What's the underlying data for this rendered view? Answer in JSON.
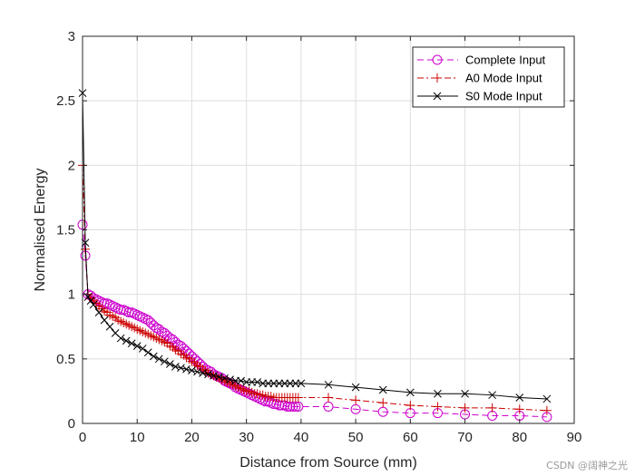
{
  "chart_data": {
    "type": "line",
    "title": "",
    "xlabel": "Distance from Source (mm)",
    "ylabel": "Normalised Energy",
    "xlim": [
      0,
      90
    ],
    "ylim": [
      0,
      3
    ],
    "xticks": [
      0,
      10,
      20,
      30,
      40,
      50,
      60,
      70,
      80,
      90
    ],
    "yticks": [
      0,
      0.5,
      1,
      1.5,
      2,
      2.5,
      3
    ],
    "xtick_labels": [
      "0",
      "10",
      "20",
      "30",
      "40",
      "50",
      "60",
      "70",
      "80",
      "90"
    ],
    "ytick_labels": [
      "0",
      "0.5",
      "1",
      "1.5",
      "2",
      "2.5",
      "3"
    ],
    "grid": true,
    "legend_position": "top-right",
    "series": [
      {
        "name": "Complete Input",
        "color": "#cc00cc",
        "line": "dashed",
        "marker": "circle",
        "x": [
          0,
          0.5,
          1,
          1.5,
          2,
          2.5,
          3,
          3.5,
          4,
          4.5,
          5,
          5.5,
          6,
          6.5,
          7,
          7.5,
          8,
          8.5,
          9,
          9.5,
          10,
          10.5,
          11,
          11.5,
          12,
          12.5,
          13,
          13.5,
          14,
          14.5,
          15,
          15.5,
          16,
          16.5,
          17,
          17.5,
          18,
          18.5,
          19,
          19.5,
          20,
          20.5,
          21,
          21.5,
          22,
          22.5,
          23,
          23.5,
          24,
          24.5,
          25,
          25.5,
          26,
          26.5,
          27,
          27.5,
          28,
          28.5,
          29,
          29.5,
          30,
          30.5,
          31,
          31.5,
          32,
          32.5,
          33,
          33.5,
          34,
          34.5,
          35,
          35.5,
          36,
          36.5,
          37,
          37.5,
          38,
          38.5,
          39,
          39.5,
          45,
          50,
          55,
          60,
          65,
          70,
          75,
          80,
          85
        ],
        "values": [
          1.54,
          1.3,
          1.0,
          0.99,
          0.97,
          0.96,
          0.95,
          0.94,
          0.93,
          0.93,
          0.92,
          0.91,
          0.9,
          0.89,
          0.88,
          0.88,
          0.87,
          0.86,
          0.86,
          0.85,
          0.84,
          0.83,
          0.82,
          0.81,
          0.8,
          0.78,
          0.76,
          0.74,
          0.73,
          0.71,
          0.7,
          0.68,
          0.66,
          0.65,
          0.63,
          0.61,
          0.6,
          0.58,
          0.56,
          0.54,
          0.52,
          0.5,
          0.48,
          0.46,
          0.44,
          0.42,
          0.41,
          0.4,
          0.38,
          0.37,
          0.36,
          0.35,
          0.33,
          0.32,
          0.31,
          0.3,
          0.28,
          0.27,
          0.26,
          0.25,
          0.24,
          0.23,
          0.22,
          0.21,
          0.2,
          0.19,
          0.18,
          0.17,
          0.17,
          0.16,
          0.15,
          0.15,
          0.14,
          0.14,
          0.14,
          0.13,
          0.13,
          0.13,
          0.13,
          0.13,
          0.13,
          0.11,
          0.09,
          0.08,
          0.08,
          0.07,
          0.06,
          0.06,
          0.05
        ]
      },
      {
        "name": "A0 Mode Input",
        "color": "#cc0000",
        "line": "dashdot",
        "marker": "plus",
        "x": [
          0,
          0.5,
          1,
          1.5,
          2,
          2.5,
          3,
          3.5,
          4,
          4.5,
          5,
          5.5,
          6,
          6.5,
          7,
          7.5,
          8,
          8.5,
          9,
          9.5,
          10,
          10.5,
          11,
          11.5,
          12,
          12.5,
          13,
          13.5,
          14,
          14.5,
          15,
          15.5,
          16,
          16.5,
          17,
          17.5,
          18,
          18.5,
          19,
          19.5,
          20,
          20.5,
          21,
          21.5,
          22,
          22.5,
          23,
          23.5,
          24,
          24.5,
          25,
          25.5,
          26,
          26.5,
          27,
          27.5,
          28,
          28.5,
          29,
          29.5,
          30,
          30.5,
          31,
          31.5,
          32,
          32.5,
          33,
          33.5,
          34,
          34.5,
          35,
          35.5,
          36,
          36.5,
          37,
          37.5,
          38,
          38.5,
          39,
          39.5,
          45,
          50,
          55,
          60,
          65,
          70,
          75,
          80,
          85
        ],
        "values": [
          2.0,
          1.35,
          1.0,
          0.97,
          0.95,
          0.93,
          0.91,
          0.89,
          0.87,
          0.86,
          0.84,
          0.83,
          0.82,
          0.8,
          0.79,
          0.78,
          0.77,
          0.76,
          0.75,
          0.74,
          0.73,
          0.72,
          0.71,
          0.7,
          0.69,
          0.68,
          0.67,
          0.66,
          0.65,
          0.64,
          0.63,
          0.62,
          0.6,
          0.59,
          0.57,
          0.56,
          0.54,
          0.53,
          0.51,
          0.5,
          0.48,
          0.47,
          0.45,
          0.44,
          0.42,
          0.41,
          0.39,
          0.38,
          0.37,
          0.36,
          0.35,
          0.34,
          0.33,
          0.32,
          0.31,
          0.3,
          0.29,
          0.28,
          0.27,
          0.26,
          0.25,
          0.25,
          0.24,
          0.23,
          0.23,
          0.22,
          0.22,
          0.21,
          0.21,
          0.21,
          0.2,
          0.2,
          0.2,
          0.2,
          0.2,
          0.2,
          0.2,
          0.2,
          0.2,
          0.2,
          0.2,
          0.18,
          0.16,
          0.14,
          0.13,
          0.12,
          0.12,
          0.11,
          0.1
        ]
      },
      {
        "name": "S0 Mode Input",
        "color": "#000000",
        "line": "solid",
        "marker": "x",
        "x": [
          0,
          0.5,
          1,
          1.5,
          2,
          3,
          4,
          5,
          6,
          7,
          8,
          9,
          10,
          11,
          12,
          13,
          14,
          15,
          16,
          17,
          18,
          19,
          20,
          21,
          22,
          23,
          24,
          25,
          26,
          27,
          28,
          29,
          30,
          31,
          32,
          33,
          34,
          35,
          36,
          37,
          38,
          39,
          40,
          45,
          50,
          55,
          60,
          65,
          70,
          75,
          80,
          85
        ],
        "values": [
          2.56,
          1.4,
          0.98,
          0.95,
          0.92,
          0.86,
          0.8,
          0.75,
          0.7,
          0.66,
          0.64,
          0.62,
          0.6,
          0.58,
          0.55,
          0.52,
          0.5,
          0.48,
          0.46,
          0.44,
          0.43,
          0.42,
          0.41,
          0.4,
          0.39,
          0.38,
          0.37,
          0.36,
          0.35,
          0.34,
          0.33,
          0.33,
          0.32,
          0.32,
          0.32,
          0.31,
          0.31,
          0.31,
          0.31,
          0.31,
          0.31,
          0.31,
          0.31,
          0.3,
          0.28,
          0.26,
          0.24,
          0.23,
          0.23,
          0.22,
          0.2,
          0.19
        ]
      }
    ]
  },
  "watermark": "CSDN @阔神之光"
}
